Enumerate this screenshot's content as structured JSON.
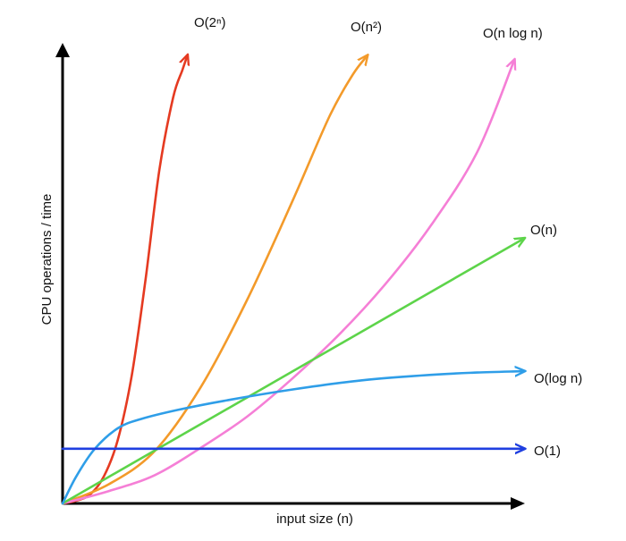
{
  "chart_data": {
    "type": "line",
    "title": "",
    "xlabel": "input size (n)",
    "ylabel": "CPU operations / time",
    "grid": false,
    "series": [
      {
        "name": "O(2ⁿ)",
        "color": "#e53a21",
        "points": [
          [
            0,
            0
          ],
          [
            0.03,
            0.006
          ],
          [
            0.06,
            0.02
          ],
          [
            0.09,
            0.06
          ],
          [
            0.12,
            0.14
          ],
          [
            0.15,
            0.28
          ],
          [
            0.18,
            0.49
          ],
          [
            0.21,
            0.73
          ],
          [
            0.24,
            0.89
          ],
          [
            0.26,
            0.95
          ],
          [
            0.27,
            0.98
          ]
        ]
      },
      {
        "name": "O(n²)",
        "color": "#f39a2a",
        "points": [
          [
            0,
            0
          ],
          [
            0.1,
            0.042
          ],
          [
            0.2,
            0.115
          ],
          [
            0.3,
            0.255
          ],
          [
            0.4,
            0.445
          ],
          [
            0.5,
            0.665
          ],
          [
            0.58,
            0.85
          ],
          [
            0.63,
            0.94
          ],
          [
            0.66,
            0.98
          ]
        ]
      },
      {
        "name": "O(n log n)",
        "color": "#f57fd6",
        "points": [
          [
            0,
            0
          ],
          [
            0.1,
            0.027
          ],
          [
            0.2,
            0.062
          ],
          [
            0.3,
            0.122
          ],
          [
            0.4,
            0.19
          ],
          [
            0.5,
            0.275
          ],
          [
            0.6,
            0.37
          ],
          [
            0.7,
            0.48
          ],
          [
            0.8,
            0.61
          ],
          [
            0.9,
            0.77
          ],
          [
            0.98,
            0.97
          ]
        ]
      },
      {
        "name": "O(n)",
        "color": "#5dd44a",
        "points": [
          [
            0,
            0
          ],
          [
            1,
            0.58
          ]
        ]
      },
      {
        "name": "O(log n)",
        "color": "#2f9ee8",
        "points": [
          [
            0,
            0
          ],
          [
            0.03,
            0.06
          ],
          [
            0.07,
            0.12
          ],
          [
            0.12,
            0.165
          ],
          [
            0.17,
            0.185
          ],
          [
            0.25,
            0.205
          ],
          [
            0.35,
            0.225
          ],
          [
            0.5,
            0.25
          ],
          [
            0.65,
            0.27
          ],
          [
            0.8,
            0.282
          ],
          [
            0.9,
            0.287
          ],
          [
            1.0,
            0.29
          ]
        ]
      },
      {
        "name": "O(1)",
        "color": "#1f3fe0",
        "points": [
          [
            0,
            0.12
          ],
          [
            1.0,
            0.12
          ]
        ]
      }
    ]
  }
}
